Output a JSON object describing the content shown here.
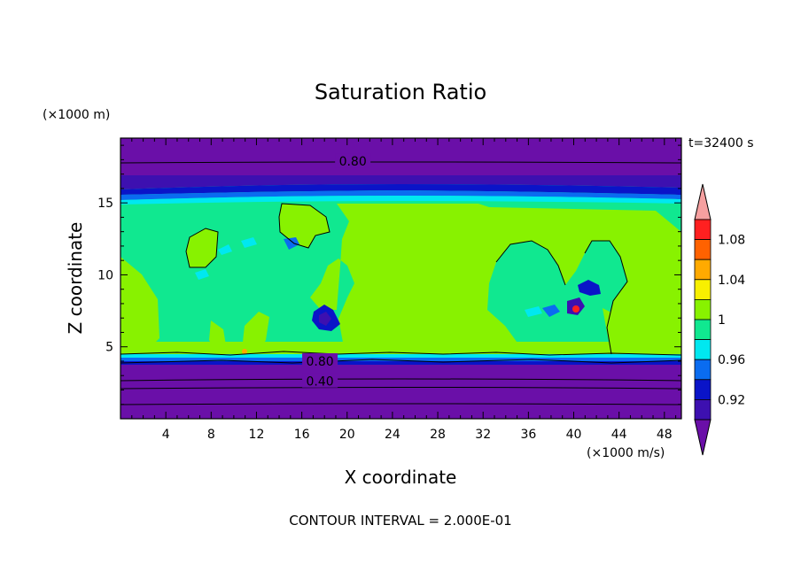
{
  "chart_data": {
    "type": "heatmap",
    "title": "Saturation Ratio",
    "xlabel": "X coordinate",
    "ylabel": "Z coordinate",
    "x_unit": "(×1000 m/s)",
    "y_unit": "(×1000 m)",
    "time_label": "t=32400 s",
    "footer": "CONTOUR INTERVAL = 2.000E-01",
    "xlim": [
      0,
      49.5
    ],
    "ylim": [
      0,
      19.5
    ],
    "x_ticks": [
      4,
      8,
      12,
      16,
      20,
      24,
      28,
      32,
      36,
      40,
      44,
      48
    ],
    "y_ticks": [
      5,
      10,
      15
    ],
    "colorbar": {
      "bins": [
        {
          "low": null,
          "high": 0.9,
          "color": "#6a0fa8"
        },
        {
          "low": 0.9,
          "high": 0.92,
          "color": "#3d10b0"
        },
        {
          "low": 0.92,
          "high": 0.94,
          "color": "#0a14c8"
        },
        {
          "low": 0.94,
          "high": 0.96,
          "color": "#0a6cf0"
        },
        {
          "low": 0.96,
          "high": 0.98,
          "color": "#00e8f0"
        },
        {
          "low": 0.98,
          "high": 1.0,
          "color": "#10e890"
        },
        {
          "low": 1.0,
          "high": 1.02,
          "color": "#88f200"
        },
        {
          "low": 1.02,
          "high": 1.04,
          "color": "#f8f000"
        },
        {
          "low": 1.04,
          "high": 1.06,
          "color": "#ffaa00"
        },
        {
          "low": 1.06,
          "high": 1.08,
          "color": "#ff6200"
        },
        {
          "low": 1.08,
          "high": 1.1,
          "color": "#ff2020"
        },
        {
          "low": 1.1,
          "high": null,
          "color": "#f6a0a0"
        }
      ],
      "tick_labels": [
        "1.08",
        "1.04",
        "1",
        "0.96",
        "0.92"
      ]
    },
    "contour_labels": [
      {
        "value": "0.80",
        "x": 20.5,
        "z": 17.9
      },
      {
        "value": "0.80",
        "x": 17.6,
        "z": 4.0
      },
      {
        "value": "0.40",
        "x": 17.6,
        "z": 2.6
      }
    ],
    "contour_lines_z": [
      0.9,
      1.6,
      2.6,
      3.3,
      4.0,
      17.9
    ]
  }
}
